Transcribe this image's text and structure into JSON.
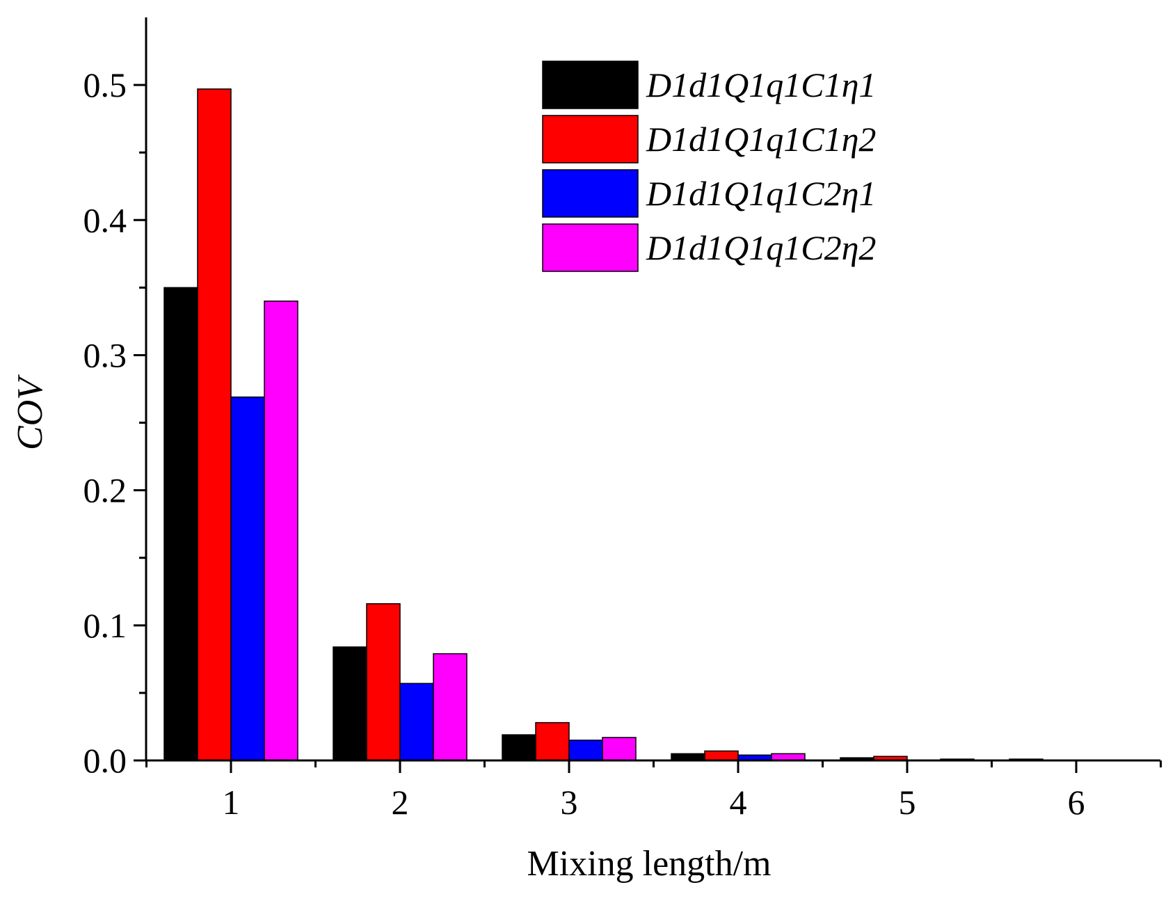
{
  "chart_data": {
    "type": "bar",
    "title": "",
    "xlabel": "Mixing length/m",
    "ylabel": "COV",
    "categories": [
      "1",
      "2",
      "3",
      "4",
      "5",
      "6"
    ],
    "ylim": [
      0,
      0.55
    ],
    "yticks": [
      0.0,
      0.1,
      0.2,
      0.3,
      0.4,
      0.5
    ],
    "ytick_labels": [
      "0.0",
      "0.1",
      "0.2",
      "0.3",
      "0.4",
      "0.5"
    ],
    "legend_position": "top-right",
    "series": [
      {
        "name": "D1d1Q1q1C1η1",
        "color": "#000000",
        "values": [
          0.35,
          0.084,
          0.019,
          0.005,
          0.002,
          0.001
        ]
      },
      {
        "name": "D1d1Q1q1C1η2",
        "color": "#ff0000",
        "values": [
          0.497,
          0.116,
          0.028,
          0.007,
          0.003,
          0.0
        ]
      },
      {
        "name": "D1d1Q1q1C2η1",
        "color": "#0000ff",
        "values": [
          0.269,
          0.057,
          0.015,
          0.004,
          0.0,
          0.0
        ]
      },
      {
        "name": "D1d1Q1q1C2η2",
        "color": "#ff00ff",
        "values": [
          0.34,
          0.079,
          0.017,
          0.005,
          0.001,
          0.0
        ]
      }
    ]
  }
}
